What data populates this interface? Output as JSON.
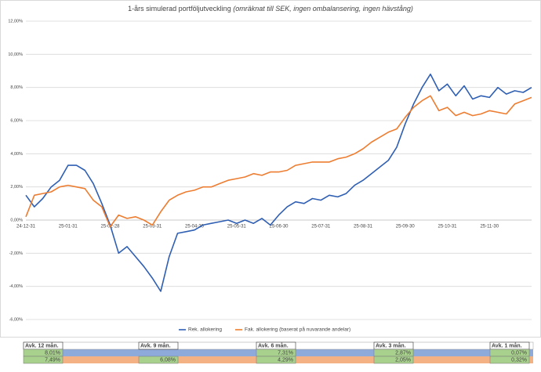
{
  "chart_data": {
    "type": "line",
    "title": "1-års simulerad portföljutveckling",
    "title_note": "(omräknat till SEK, ingen ombalansering, ingen hävstång)",
    "categories": [
      "24-12-31",
      null,
      null,
      null,
      null,
      "25-01-31",
      null,
      null,
      null,
      null,
      "25-02-28",
      null,
      null,
      null,
      null,
      "25-03-31",
      null,
      null,
      null,
      null,
      "25-04-30",
      null,
      null,
      null,
      null,
      "25-05-31",
      null,
      null,
      null,
      null,
      "25-06-30",
      null,
      null,
      null,
      null,
      "25-07-31",
      null,
      null,
      null,
      null,
      "25-08-31",
      null,
      null,
      null,
      null,
      "25-09-30",
      null,
      null,
      null,
      null,
      "25-10-31",
      null,
      null,
      null,
      null,
      "25-11-30",
      null,
      null,
      null,
      null,
      null
    ],
    "series": [
      {
        "name": "Rek. allokering",
        "color": "#2f5fb3",
        "values": [
          1.5,
          0.8,
          1.3,
          2.0,
          2.4,
          3.3,
          3.3,
          3.0,
          2.2,
          1.0,
          -0.3,
          -2.0,
          -1.6,
          -2.2,
          -2.8,
          -3.5,
          -4.3,
          -2.2,
          -0.8,
          -0.7,
          -0.6,
          -0.3,
          -0.2,
          -0.1,
          0.0,
          -0.2,
          0.0,
          -0.2,
          0.1,
          -0.3,
          0.3,
          0.8,
          1.1,
          1.0,
          1.3,
          1.2,
          1.5,
          1.4,
          1.6,
          2.1,
          2.4,
          2.8,
          3.2,
          3.6,
          4.4,
          5.8,
          7.0,
          8.0,
          8.8,
          7.8,
          8.2,
          7.5,
          8.1,
          7.3,
          7.5,
          7.4,
          8.0,
          7.6,
          7.8,
          7.7,
          8.0
        ]
      },
      {
        "name": "Fak. allokering (baserat på nuvarande andelar)",
        "color": "#ed7d31",
        "values": [
          0.2,
          1.5,
          1.6,
          1.7,
          2.0,
          2.1,
          2.0,
          1.9,
          1.2,
          0.8,
          -0.4,
          0.3,
          0.1,
          0.2,
          0.0,
          -0.3,
          0.5,
          1.2,
          1.5,
          1.7,
          1.8,
          2.0,
          2.0,
          2.2,
          2.4,
          2.5,
          2.6,
          2.8,
          2.7,
          2.9,
          2.9,
          3.0,
          3.3,
          3.4,
          3.5,
          3.5,
          3.5,
          3.7,
          3.8,
          4.0,
          4.3,
          4.7,
          5.0,
          5.3,
          5.5,
          6.2,
          6.8,
          7.2,
          7.5,
          6.6,
          6.8,
          6.3,
          6.5,
          6.3,
          6.4,
          6.6,
          6.5,
          6.4,
          7.0,
          7.2,
          7.4
        ]
      }
    ],
    "ylim": [
      -6,
      12
    ],
    "yticks": [
      {
        "value": -6,
        "label": "-6,00%"
      },
      {
        "value": -4,
        "label": "-4,00%"
      },
      {
        "value": -2,
        "label": "-2,00%"
      },
      {
        "value": 0,
        "label": "0,00%"
      },
      {
        "value": 2,
        "label": "2,00%"
      },
      {
        "value": 4,
        "label": "4,00%"
      },
      {
        "value": 6,
        "label": "6,00%"
      },
      {
        "value": 8,
        "label": "8,00%"
      },
      {
        "value": 10,
        "label": "10,00%"
      },
      {
        "value": 12,
        "label": "12,00%"
      }
    ],
    "grid": true,
    "legend": "bottom"
  },
  "table": {
    "groups": [
      {
        "header": "Avk. 12 mån.",
        "rek": "8,01%",
        "fak": "7,49%"
      },
      {
        "header": "Avk. 9 mån.",
        "fak": "6,08%"
      },
      {
        "header": "Avk. 6 mån.",
        "rek": "7,31%",
        "fak": "4,29%"
      },
      {
        "header": "Avk. 3 mån.",
        "rek": "2,87%",
        "fak": "2,05%"
      },
      {
        "header": "Avk. 1 mån.",
        "rek": "0,07%",
        "fak": "0,32%"
      }
    ]
  }
}
